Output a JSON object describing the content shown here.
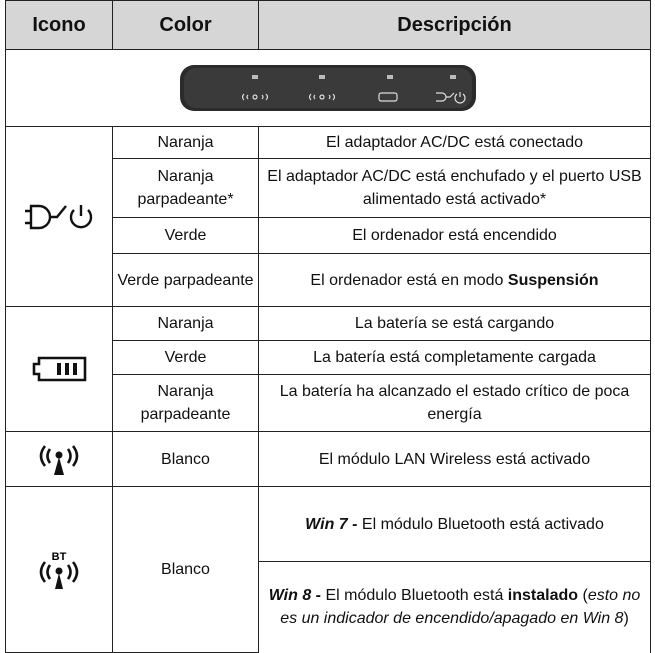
{
  "header": {
    "icon": "Icono",
    "color": "Color",
    "description": "Descripción"
  },
  "groups": [
    {
      "rows": [
        {
          "color": "Naranja",
          "description": [
            "El adaptador AC/DC está conectado"
          ]
        },
        {
          "color": "Naranja parpadeante*",
          "description": [
            "El adaptador AC/DC está enchufado y el puerto USB alimentado está activado*"
          ]
        },
        {
          "color": "Verde",
          "description": [
            "El ordenador está encendido"
          ]
        },
        {
          "color": "Verde parpadeante",
          "description": [
            "El ordenador está en modo ",
            "Suspensión"
          ]
        }
      ]
    },
    {
      "rows": [
        {
          "color": "Naranja",
          "description": [
            "La batería se está cargando"
          ]
        },
        {
          "color": "Verde",
          "description": [
            "La batería está completamente cargada"
          ]
        },
        {
          "color": "Naranja parpadeante",
          "description": [
            "La batería ha alcanzado el estado crítico de poca energía"
          ]
        }
      ]
    },
    {
      "rows": [
        {
          "color": "Blanco",
          "description": [
            "El módulo LAN Wireless está activado"
          ]
        }
      ]
    },
    {
      "color": "Blanco",
      "descriptions": [
        [
          "Win 7 - ",
          "El módulo Bluetooth está activado"
        ],
        [
          "Win 8 - ",
          "El módulo Bluetooth está ",
          "instalado",
          " (",
          "esto no es un indicador de encendido/apagado en Win 8",
          ")"
        ]
      ]
    }
  ]
}
